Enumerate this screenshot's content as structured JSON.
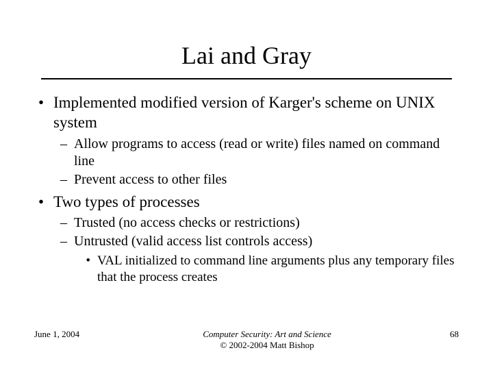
{
  "title": "Lai and Gray",
  "bullets": [
    {
      "text": "Implemented modified version of Karger's scheme on UNIX system",
      "sub": [
        {
          "text": "Allow programs to access (read or write) files named on command line"
        },
        {
          "text": "Prevent access to other files"
        }
      ]
    },
    {
      "text": "Two types of processes",
      "sub": [
        {
          "text": "Trusted (no access checks or restrictions)"
        },
        {
          "text": "Untrusted (valid access list controls access)",
          "subsub": [
            {
              "text": "VAL initialized to command line arguments plus any temporary files that the process creates"
            }
          ]
        }
      ]
    }
  ],
  "footer": {
    "date": "June 1, 2004",
    "center_line1": "Computer Security: Art and Science",
    "center_line2": "© 2002-2004 Matt Bishop",
    "page": "68"
  },
  "style": {
    "background_color": "#ffffff",
    "text_color": "#000000",
    "title_fontsize": 36,
    "body_fontsize": 23,
    "sub_fontsize": 20,
    "subsub_fontsize": 19,
    "footer_fontsize": 13
  }
}
